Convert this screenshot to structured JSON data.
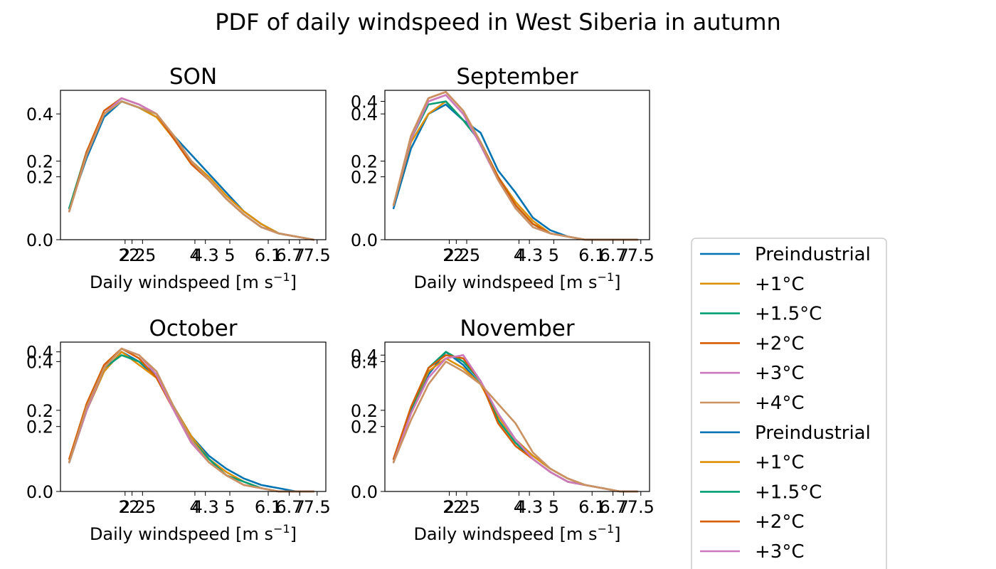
{
  "figure": {
    "title": "PDF of daily windspeed in West Siberia in autumn"
  },
  "colors": {
    "Preindustrial": "#0173b2",
    "+1°C": "#de8f05",
    "+1.5°C": "#029e73",
    "+2°C": "#d55e00",
    "+3°C": "#cc78bc",
    "+4°C": "#ca9161"
  },
  "legend": {
    "placement": "lower-right, outside axes (clipped at bottom)",
    "entries": [
      "Preindustrial",
      "+1°C",
      "+1.5°C",
      "+2°C",
      "+3°C",
      "+4°C",
      "Preindustrial",
      "+1°C",
      "+1.5°C",
      "+2°C",
      "+3°C"
    ],
    "entry_colors": [
      "#0173b2",
      "#de8f05",
      "#029e73",
      "#d55e00",
      "#cc78bc",
      "#ca9161",
      "#0173b2",
      "#de8f05",
      "#029e73",
      "#d55e00",
      "#cc78bc"
    ]
  },
  "chart_data": [
    {
      "type": "line",
      "title": "SON",
      "xlabel": "Daily windspeed [m s⁻¹]",
      "xlim": [
        0.15,
        7.75
      ],
      "ylim": [
        0,
        0.475
      ],
      "x_ticks": [
        2,
        2.2,
        2.5,
        4,
        4.3,
        5,
        6.1,
        6.7,
        7,
        7.5
      ],
      "x_tick_labels": [
        "2",
        "2.2",
        "2.5",
        "4",
        "4.3",
        "5",
        "6.1",
        "6.7",
        "7",
        "7.5"
      ],
      "y_ticks": [
        0.0,
        0.2,
        0.25,
        0.4
      ],
      "y_tick_labels": [
        "0.0",
        "0.2",
        "0.2",
        "0.4"
      ],
      "x": [
        0.4,
        0.9,
        1.4,
        1.9,
        2.4,
        2.9,
        3.4,
        3.9,
        4.4,
        4.9,
        5.4,
        5.9,
        6.4,
        6.9,
        7.4
      ],
      "series": [
        {
          "name": "Preindustrial",
          "values": [
            0.1,
            0.26,
            0.39,
            0.44,
            0.42,
            0.39,
            0.33,
            0.27,
            0.21,
            0.15,
            0.09,
            0.05,
            0.02,
            0.01,
            0.0
          ]
        },
        {
          "name": "+1°C",
          "values": [
            0.09,
            0.27,
            0.4,
            0.44,
            0.42,
            0.39,
            0.32,
            0.25,
            0.2,
            0.14,
            0.09,
            0.05,
            0.02,
            0.01,
            0.0
          ]
        },
        {
          "name": "+1.5°C",
          "values": [
            0.1,
            0.28,
            0.4,
            0.44,
            0.42,
            0.4,
            0.33,
            0.25,
            0.19,
            0.13,
            0.08,
            0.04,
            0.02,
            0.01,
            0.0
          ]
        },
        {
          "name": "+2°C",
          "values": [
            0.09,
            0.28,
            0.41,
            0.45,
            0.43,
            0.4,
            0.32,
            0.24,
            0.19,
            0.13,
            0.08,
            0.04,
            0.02,
            0.01,
            0.0
          ]
        },
        {
          "name": "+3°C",
          "values": [
            0.09,
            0.27,
            0.4,
            0.45,
            0.43,
            0.4,
            0.33,
            0.25,
            0.19,
            0.13,
            0.08,
            0.04,
            0.02,
            0.01,
            0.0
          ]
        },
        {
          "name": "+4°C",
          "values": [
            0.09,
            0.27,
            0.4,
            0.44,
            0.42,
            0.4,
            0.33,
            0.25,
            0.19,
            0.13,
            0.08,
            0.04,
            0.02,
            0.01,
            0.0
          ]
        }
      ]
    },
    {
      "type": "line",
      "title": "September",
      "xlabel": "Daily windspeed [m s⁻¹]",
      "xlim": [
        0.15,
        7.75
      ],
      "ylim": [
        0,
        0.475
      ],
      "x_ticks": [
        2,
        2.2,
        2.5,
        4,
        4.3,
        5,
        6.1,
        6.7,
        7,
        7.5
      ],
      "x_tick_labels": [
        "2",
        "2.2",
        "2.5",
        "4",
        "4.3",
        "5",
        "6.1",
        "6.7",
        "7",
        "7.5"
      ],
      "y_ticks": [
        0.0,
        0.2,
        0.25,
        0.4,
        0.44
      ],
      "y_tick_labels": [
        "0.0",
        "0.2",
        "0.2",
        "0.4",
        "0.4"
      ],
      "x": [
        0.4,
        0.9,
        1.4,
        1.9,
        2.4,
        2.9,
        3.4,
        3.9,
        4.4,
        4.9,
        5.4,
        5.9,
        6.4,
        6.9,
        7.4
      ],
      "series": [
        {
          "name": "Preindustrial",
          "values": [
            0.1,
            0.29,
            0.4,
            0.43,
            0.38,
            0.34,
            0.22,
            0.15,
            0.07,
            0.03,
            0.01,
            0.0,
            0.0,
            0.0,
            0.0
          ]
        },
        {
          "name": "+1°C",
          "values": [
            0.11,
            0.31,
            0.4,
            0.44,
            0.38,
            0.31,
            0.2,
            0.12,
            0.06,
            0.02,
            0.01,
            0.0,
            0.0,
            0.0,
            0.0
          ]
        },
        {
          "name": "+1.5°C",
          "values": [
            0.11,
            0.32,
            0.43,
            0.44,
            0.38,
            0.31,
            0.2,
            0.11,
            0.05,
            0.02,
            0.01,
            0.0,
            0.0,
            0.0,
            0.0
          ]
        },
        {
          "name": "+2°C",
          "values": [
            0.11,
            0.33,
            0.45,
            0.47,
            0.41,
            0.31,
            0.2,
            0.11,
            0.05,
            0.02,
            0.01,
            0.0,
            0.0,
            0.0,
            0.0
          ]
        },
        {
          "name": "+3°C",
          "values": [
            0.11,
            0.32,
            0.44,
            0.46,
            0.4,
            0.3,
            0.19,
            0.1,
            0.04,
            0.02,
            0.01,
            0.0,
            0.0,
            0.0,
            0.0
          ]
        },
        {
          "name": "+4°C",
          "values": [
            0.11,
            0.33,
            0.45,
            0.47,
            0.41,
            0.31,
            0.19,
            0.1,
            0.04,
            0.02,
            0.01,
            0.0,
            0.0,
            0.0,
            0.0
          ]
        }
      ]
    },
    {
      "type": "line",
      "title": "October",
      "xlabel": "Daily windspeed [m s⁻¹]",
      "xlim": [
        0.15,
        7.75
      ],
      "ylim": [
        0,
        0.46
      ],
      "x_ticks": [
        2,
        2.2,
        2.5,
        4,
        4.3,
        5,
        6.1,
        6.7,
        7,
        7.5
      ],
      "x_tick_labels": [
        "2",
        "2.2",
        "2.5",
        "4",
        "4.3",
        "5",
        "6.1",
        "6.7",
        "7",
        "7.5"
      ],
      "y_ticks": [
        0.0,
        0.2,
        0.25,
        0.4,
        0.43
      ],
      "y_tick_labels": [
        "0.0",
        "0.2",
        "0.2",
        "0.4",
        "0.4"
      ],
      "x": [
        0.4,
        0.9,
        1.4,
        1.9,
        2.4,
        2.9,
        3.4,
        3.9,
        4.4,
        4.9,
        5.4,
        5.9,
        6.4,
        6.9,
        7.4
      ],
      "series": [
        {
          "name": "Preindustrial",
          "values": [
            0.09,
            0.25,
            0.37,
            0.43,
            0.4,
            0.35,
            0.26,
            0.17,
            0.11,
            0.07,
            0.04,
            0.02,
            0.01,
            0.0,
            0.0
          ]
        },
        {
          "name": "+1°C",
          "values": [
            0.09,
            0.25,
            0.37,
            0.43,
            0.39,
            0.35,
            0.26,
            0.17,
            0.1,
            0.06,
            0.03,
            0.01,
            0.0,
            0.0,
            0.0
          ]
        },
        {
          "name": "+1.5°C",
          "values": [
            0.09,
            0.25,
            0.38,
            0.42,
            0.4,
            0.36,
            0.26,
            0.16,
            0.1,
            0.05,
            0.03,
            0.01,
            0.0,
            0.0,
            0.0
          ]
        },
        {
          "name": "+2°C",
          "values": [
            0.1,
            0.27,
            0.39,
            0.44,
            0.41,
            0.35,
            0.25,
            0.15,
            0.09,
            0.05,
            0.02,
            0.01,
            0.0,
            0.0,
            0.0
          ]
        },
        {
          "name": "+3°C",
          "values": [
            0.09,
            0.25,
            0.38,
            0.44,
            0.42,
            0.36,
            0.25,
            0.15,
            0.09,
            0.05,
            0.02,
            0.01,
            0.0,
            0.0,
            0.0
          ]
        },
        {
          "name": "+4°C",
          "values": [
            0.09,
            0.26,
            0.38,
            0.44,
            0.42,
            0.37,
            0.26,
            0.16,
            0.09,
            0.05,
            0.02,
            0.01,
            0.0,
            0.0,
            0.0
          ]
        }
      ]
    },
    {
      "type": "line",
      "title": "November",
      "xlabel": "Daily windspeed [m s⁻¹]",
      "xlim": [
        0.15,
        7.75
      ],
      "ylim": [
        0,
        0.46
      ],
      "x_ticks": [
        2,
        2.2,
        2.5,
        4,
        4.3,
        5,
        6.1,
        6.7,
        7,
        7.5
      ],
      "x_tick_labels": [
        "2",
        "2.2",
        "2.5",
        "4",
        "4.3",
        "5",
        "6.1",
        "6.7",
        "7",
        "7.5"
      ],
      "y_ticks": [
        0.0,
        0.2,
        0.25,
        0.4,
        0.42
      ],
      "y_tick_labels": [
        "0.0",
        "0.2",
        "0.2",
        "0.4",
        "0.4"
      ],
      "x": [
        0.4,
        0.9,
        1.4,
        1.9,
        2.4,
        2.9,
        3.4,
        3.9,
        4.4,
        4.9,
        5.4,
        5.9,
        6.4,
        6.9,
        7.4
      ],
      "series": [
        {
          "name": "Preindustrial",
          "values": [
            0.1,
            0.25,
            0.36,
            0.43,
            0.39,
            0.33,
            0.24,
            0.16,
            0.11,
            0.07,
            0.04,
            0.02,
            0.01,
            0.0,
            0.0
          ]
        },
        {
          "name": "+1°C",
          "values": [
            0.09,
            0.25,
            0.37,
            0.41,
            0.38,
            0.33,
            0.23,
            0.16,
            0.11,
            0.07,
            0.04,
            0.02,
            0.01,
            0.0,
            0.0
          ]
        },
        {
          "name": "+1.5°C",
          "values": [
            0.09,
            0.25,
            0.38,
            0.43,
            0.4,
            0.34,
            0.22,
            0.15,
            0.1,
            0.06,
            0.03,
            0.02,
            0.01,
            0.0,
            0.0
          ]
        },
        {
          "name": "+2°C",
          "values": [
            0.1,
            0.26,
            0.38,
            0.42,
            0.41,
            0.34,
            0.21,
            0.14,
            0.1,
            0.06,
            0.03,
            0.02,
            0.01,
            0.0,
            0.0
          ]
        },
        {
          "name": "+3°C",
          "values": [
            0.09,
            0.24,
            0.35,
            0.41,
            0.42,
            0.34,
            0.24,
            0.16,
            0.1,
            0.06,
            0.03,
            0.02,
            0.01,
            0.0,
            0.0
          ]
        },
        {
          "name": "+4°C",
          "values": [
            0.09,
            0.22,
            0.33,
            0.4,
            0.37,
            0.33,
            0.27,
            0.21,
            0.12,
            0.07,
            0.04,
            0.02,
            0.01,
            0.0,
            0.0
          ]
        }
      ]
    }
  ]
}
